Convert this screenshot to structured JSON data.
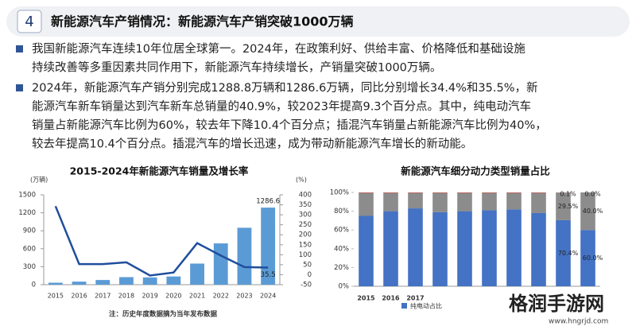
{
  "header": {
    "number": "4",
    "title": "新能源汽车产销情况：新能源汽车产销突破1000万辆"
  },
  "bullets": [
    [
      "我国新能源汽车连续10年位居全球第一。2024年，在政策利好、供给丰富、价格降低和基础设施",
      "持续改善等多重因素共同作用下，新能源汽车持续增长，产销量突破1000万辆。"
    ],
    [
      "2024年，新能源汽车产销分别完成1288.8万辆和1286.6万辆，同比分别增长34.4%和35.5%，新",
      "能源汽车新车销量达到汽车新车总销量的40.9%，较2023年提高9.3个百分点。其中，纯电动汽车",
      "销量占新能源汽车比例为60%，较去年下降10.4个百分点；插混汽车销量占新能源汽车比例为40%，",
      "较去年提高10.4个百分点。插混汽车的增长迅速，成为带动新能源汽车增长的新动能。"
    ]
  ],
  "chart_data": [
    {
      "type": "bar",
      "title": "2015-2024年新能源汽车销量及增长率",
      "y_unit": "(万辆)",
      "y2_unit": "(%)",
      "note": "注：历史年度数据摘为当年发布数据",
      "categories": [
        "2015",
        "2016",
        "2017",
        "2018",
        "2019",
        "2020",
        "2021",
        "2022",
        "2023",
        "2024"
      ],
      "series": [
        {
          "color": "#5b9bd5",
          "values": [
            33,
            51,
            78,
            126,
            121,
            137,
            352,
            689,
            950,
            1286.6
          ],
          "value_labels": [
            null,
            null,
            null,
            null,
            null,
            null,
            null,
            null,
            null,
            "1286.6"
          ]
        },
        {
          "type": "line",
          "axis": "y2",
          "color": "#1f4e9c",
          "values": [
            343,
            53,
            53,
            62,
            -4,
            11,
            158,
            96,
            38,
            35.5
          ],
          "value_labels": [
            null,
            null,
            null,
            null,
            null,
            null,
            null,
            null,
            null,
            "35.5"
          ]
        }
      ],
      "ylim": [
        0,
        1500
      ],
      "yticks": [
        0,
        300,
        600,
        900,
        1200,
        1500
      ],
      "y2lim": [
        -50,
        400
      ],
      "y2ticks": [
        -50,
        0,
        50,
        100,
        150,
        200,
        250,
        300,
        350,
        400
      ]
    },
    {
      "type": "stacked_bar",
      "title": "新能源汽车细分动力类型销量占比",
      "categories": [
        "2015",
        "2016",
        "2017",
        null,
        null,
        null,
        null,
        null,
        null,
        null
      ],
      "series": [
        {
          "name": "纯电动占比",
          "color": "#4472c4",
          "values": [
            75,
            80,
            83,
            79,
            80,
            81,
            82,
            78,
            70.4,
            60.0
          ],
          "value_labels": [
            null,
            null,
            null,
            null,
            null,
            null,
            null,
            null,
            "70.4%",
            "60.0%"
          ]
        },
        {
          "color": "#8c8c8c",
          "values": [
            24.6,
            19.6,
            16.6,
            20.6,
            19.6,
            18.6,
            17.6,
            21.6,
            29.5,
            40.0
          ],
          "value_labels": [
            null,
            null,
            null,
            null,
            null,
            null,
            null,
            null,
            "29.5%",
            "40.0%"
          ]
        },
        {
          "color": "#e03c31",
          "values": [
            0.4,
            0.4,
            0.4,
            0.4,
            0.4,
            0.4,
            0.4,
            0.4,
            0.1,
            0.0
          ],
          "value_labels": [
            null,
            null,
            null,
            null,
            null,
            null,
            null,
            null,
            "0.1%",
            "0.0%"
          ]
        }
      ],
      "ylim": [
        0,
        100
      ],
      "yticks": [
        {
          "value": 0,
          "label": "0%"
        },
        {
          "value": 20,
          "label": "20%"
        },
        {
          "value": 40,
          "label": "40%"
        },
        {
          "value": 60,
          "label": "60%"
        },
        {
          "value": 80,
          "label": "80%"
        },
        {
          "value": 100,
          "label": "100%"
        }
      ]
    }
  ],
  "watermark": {
    "name": "格润手游网",
    "url": "www.hngrjd.com"
  }
}
